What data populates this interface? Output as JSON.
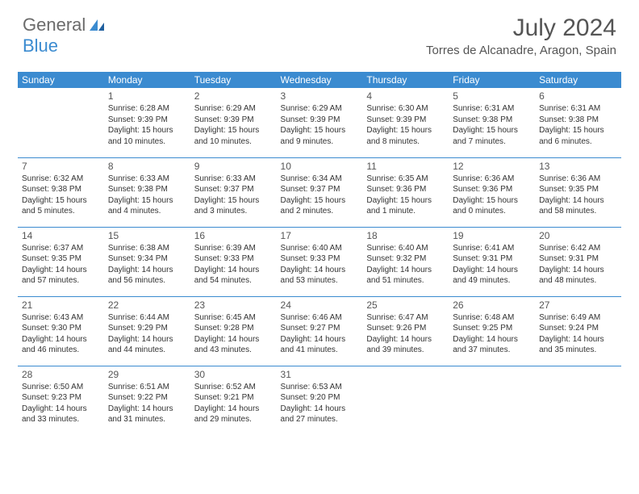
{
  "brand": {
    "general": "General",
    "blue": "Blue"
  },
  "title": "July 2024",
  "location": "Torres de Alcanadre, Aragon, Spain",
  "colors": {
    "accent": "#3b8bd0",
    "header_text": "#ffffff",
    "body_text": "#333333",
    "muted": "#555555",
    "background": "#ffffff"
  },
  "calendar": {
    "headers": [
      "Sunday",
      "Monday",
      "Tuesday",
      "Wednesday",
      "Thursday",
      "Friday",
      "Saturday"
    ],
    "font_size_header": 12,
    "font_size_cell": 10,
    "row_border_color": "#3b8bd0",
    "weeks": [
      [
        null,
        {
          "day": "1",
          "sunrise": "Sunrise: 6:28 AM",
          "sunset": "Sunset: 9:39 PM",
          "daylight1": "Daylight: 15 hours",
          "daylight2": "and 10 minutes."
        },
        {
          "day": "2",
          "sunrise": "Sunrise: 6:29 AM",
          "sunset": "Sunset: 9:39 PM",
          "daylight1": "Daylight: 15 hours",
          "daylight2": "and 10 minutes."
        },
        {
          "day": "3",
          "sunrise": "Sunrise: 6:29 AM",
          "sunset": "Sunset: 9:39 PM",
          "daylight1": "Daylight: 15 hours",
          "daylight2": "and 9 minutes."
        },
        {
          "day": "4",
          "sunrise": "Sunrise: 6:30 AM",
          "sunset": "Sunset: 9:39 PM",
          "daylight1": "Daylight: 15 hours",
          "daylight2": "and 8 minutes."
        },
        {
          "day": "5",
          "sunrise": "Sunrise: 6:31 AM",
          "sunset": "Sunset: 9:38 PM",
          "daylight1": "Daylight: 15 hours",
          "daylight2": "and 7 minutes."
        },
        {
          "day": "6",
          "sunrise": "Sunrise: 6:31 AM",
          "sunset": "Sunset: 9:38 PM",
          "daylight1": "Daylight: 15 hours",
          "daylight2": "and 6 minutes."
        }
      ],
      [
        {
          "day": "7",
          "sunrise": "Sunrise: 6:32 AM",
          "sunset": "Sunset: 9:38 PM",
          "daylight1": "Daylight: 15 hours",
          "daylight2": "and 5 minutes."
        },
        {
          "day": "8",
          "sunrise": "Sunrise: 6:33 AM",
          "sunset": "Sunset: 9:38 PM",
          "daylight1": "Daylight: 15 hours",
          "daylight2": "and 4 minutes."
        },
        {
          "day": "9",
          "sunrise": "Sunrise: 6:33 AM",
          "sunset": "Sunset: 9:37 PM",
          "daylight1": "Daylight: 15 hours",
          "daylight2": "and 3 minutes."
        },
        {
          "day": "10",
          "sunrise": "Sunrise: 6:34 AM",
          "sunset": "Sunset: 9:37 PM",
          "daylight1": "Daylight: 15 hours",
          "daylight2": "and 2 minutes."
        },
        {
          "day": "11",
          "sunrise": "Sunrise: 6:35 AM",
          "sunset": "Sunset: 9:36 PM",
          "daylight1": "Daylight: 15 hours",
          "daylight2": "and 1 minute."
        },
        {
          "day": "12",
          "sunrise": "Sunrise: 6:36 AM",
          "sunset": "Sunset: 9:36 PM",
          "daylight1": "Daylight: 15 hours",
          "daylight2": "and 0 minutes."
        },
        {
          "day": "13",
          "sunrise": "Sunrise: 6:36 AM",
          "sunset": "Sunset: 9:35 PM",
          "daylight1": "Daylight: 14 hours",
          "daylight2": "and 58 minutes."
        }
      ],
      [
        {
          "day": "14",
          "sunrise": "Sunrise: 6:37 AM",
          "sunset": "Sunset: 9:35 PM",
          "daylight1": "Daylight: 14 hours",
          "daylight2": "and 57 minutes."
        },
        {
          "day": "15",
          "sunrise": "Sunrise: 6:38 AM",
          "sunset": "Sunset: 9:34 PM",
          "daylight1": "Daylight: 14 hours",
          "daylight2": "and 56 minutes."
        },
        {
          "day": "16",
          "sunrise": "Sunrise: 6:39 AM",
          "sunset": "Sunset: 9:33 PM",
          "daylight1": "Daylight: 14 hours",
          "daylight2": "and 54 minutes."
        },
        {
          "day": "17",
          "sunrise": "Sunrise: 6:40 AM",
          "sunset": "Sunset: 9:33 PM",
          "daylight1": "Daylight: 14 hours",
          "daylight2": "and 53 minutes."
        },
        {
          "day": "18",
          "sunrise": "Sunrise: 6:40 AM",
          "sunset": "Sunset: 9:32 PM",
          "daylight1": "Daylight: 14 hours",
          "daylight2": "and 51 minutes."
        },
        {
          "day": "19",
          "sunrise": "Sunrise: 6:41 AM",
          "sunset": "Sunset: 9:31 PM",
          "daylight1": "Daylight: 14 hours",
          "daylight2": "and 49 minutes."
        },
        {
          "day": "20",
          "sunrise": "Sunrise: 6:42 AM",
          "sunset": "Sunset: 9:31 PM",
          "daylight1": "Daylight: 14 hours",
          "daylight2": "and 48 minutes."
        }
      ],
      [
        {
          "day": "21",
          "sunrise": "Sunrise: 6:43 AM",
          "sunset": "Sunset: 9:30 PM",
          "daylight1": "Daylight: 14 hours",
          "daylight2": "and 46 minutes."
        },
        {
          "day": "22",
          "sunrise": "Sunrise: 6:44 AM",
          "sunset": "Sunset: 9:29 PM",
          "daylight1": "Daylight: 14 hours",
          "daylight2": "and 44 minutes."
        },
        {
          "day": "23",
          "sunrise": "Sunrise: 6:45 AM",
          "sunset": "Sunset: 9:28 PM",
          "daylight1": "Daylight: 14 hours",
          "daylight2": "and 43 minutes."
        },
        {
          "day": "24",
          "sunrise": "Sunrise: 6:46 AM",
          "sunset": "Sunset: 9:27 PM",
          "daylight1": "Daylight: 14 hours",
          "daylight2": "and 41 minutes."
        },
        {
          "day": "25",
          "sunrise": "Sunrise: 6:47 AM",
          "sunset": "Sunset: 9:26 PM",
          "daylight1": "Daylight: 14 hours",
          "daylight2": "and 39 minutes."
        },
        {
          "day": "26",
          "sunrise": "Sunrise: 6:48 AM",
          "sunset": "Sunset: 9:25 PM",
          "daylight1": "Daylight: 14 hours",
          "daylight2": "and 37 minutes."
        },
        {
          "day": "27",
          "sunrise": "Sunrise: 6:49 AM",
          "sunset": "Sunset: 9:24 PM",
          "daylight1": "Daylight: 14 hours",
          "daylight2": "and 35 minutes."
        }
      ],
      [
        {
          "day": "28",
          "sunrise": "Sunrise: 6:50 AM",
          "sunset": "Sunset: 9:23 PM",
          "daylight1": "Daylight: 14 hours",
          "daylight2": "and 33 minutes."
        },
        {
          "day": "29",
          "sunrise": "Sunrise: 6:51 AM",
          "sunset": "Sunset: 9:22 PM",
          "daylight1": "Daylight: 14 hours",
          "daylight2": "and 31 minutes."
        },
        {
          "day": "30",
          "sunrise": "Sunrise: 6:52 AM",
          "sunset": "Sunset: 9:21 PM",
          "daylight1": "Daylight: 14 hours",
          "daylight2": "and 29 minutes."
        },
        {
          "day": "31",
          "sunrise": "Sunrise: 6:53 AM",
          "sunset": "Sunset: 9:20 PM",
          "daylight1": "Daylight: 14 hours",
          "daylight2": "and 27 minutes."
        },
        null,
        null,
        null
      ]
    ]
  }
}
